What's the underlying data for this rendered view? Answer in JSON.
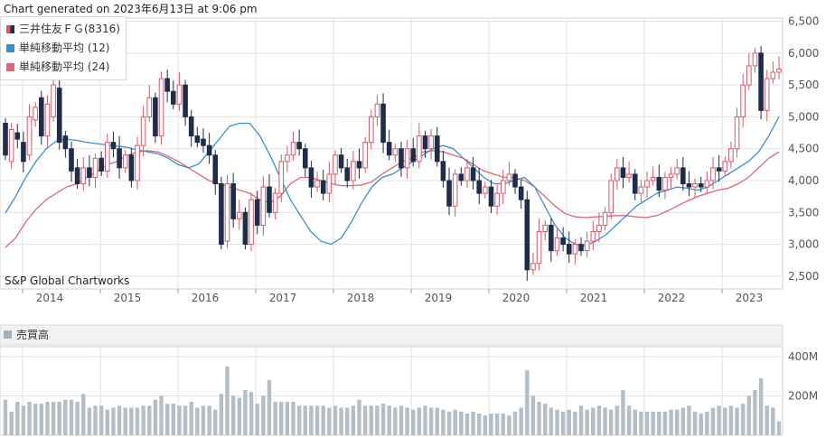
{
  "header": {
    "generated": "Chart generated on 2023年6月13日 at 9:06 pm",
    "source": "S&P Global Chartworks"
  },
  "legend": {
    "items": [
      {
        "label": "三井住友ＦＧ(8316)",
        "color": "#1f2d4a",
        "color2": "#d45a6a"
      },
      {
        "label": "単純移動平均 (12)",
        "color": "#3a8fd0"
      },
      {
        "label": "単純移動平均 (24)",
        "color": "#d9687a"
      }
    ]
  },
  "volume_panel": {
    "title": "売買高",
    "y_ticks": [
      "400M",
      "200M"
    ]
  },
  "chart_data": [
    {
      "type": "candlestick",
      "title": "三井住友ＦＧ(8316)",
      "x_labels": [
        "2014",
        "2015",
        "2016",
        "2017",
        "2018",
        "2019",
        "2020",
        "2021",
        "2022",
        "2023"
      ],
      "y_ticks": [
        "6,500",
        "6,000",
        "5,500",
        "5,000",
        "4,500",
        "4,000",
        "3,500",
        "3,000",
        "2,500"
      ],
      "ylim": [
        2300,
        6550
      ],
      "candles": [
        [
          4900,
          4400
        ],
        [
          4300,
          4800
        ],
        [
          4750,
          4650
        ],
        [
          4600,
          4300
        ],
        [
          4400,
          5000
        ],
        [
          4950,
          5150
        ],
        [
          5300,
          4700
        ],
        [
          4700,
          5200
        ],
        [
          5000,
          5500
        ],
        [
          5450,
          4600
        ],
        [
          4700,
          4500
        ],
        [
          4500,
          4150
        ],
        [
          4200,
          3950
        ],
        [
          3950,
          4200
        ],
        [
          4200,
          4050
        ],
        [
          4050,
          4350
        ],
        [
          4350,
          4150
        ],
        [
          4150,
          4600
        ],
        [
          4600,
          4500
        ],
        [
          4500,
          4200
        ],
        [
          4200,
          4400
        ],
        [
          4400,
          4000
        ],
        [
          4000,
          4550
        ],
        [
          4550,
          5000
        ],
        [
          5000,
          5300
        ],
        [
          5300,
          4700
        ],
        [
          4700,
          5600
        ],
        [
          5600,
          5400
        ],
        [
          5400,
          5200
        ],
        [
          5200,
          5500
        ],
        [
          5500,
          5000
        ],
        [
          5000,
          4700
        ],
        [
          4700,
          4600
        ],
        [
          4650,
          4550
        ],
        [
          4550,
          4400
        ],
        [
          4400,
          3950
        ],
        [
          3950,
          3000
        ],
        [
          3050,
          3950
        ],
        [
          3950,
          3400
        ],
        [
          3400,
          3500
        ],
        [
          3500,
          3000
        ],
        [
          3000,
          3700
        ],
        [
          3700,
          3300
        ],
        [
          3300,
          3900
        ],
        [
          3900,
          3500
        ],
        [
          3500,
          3800
        ],
        [
          3800,
          4300
        ],
        [
          4300,
          4400
        ],
        [
          4400,
          4600
        ],
        [
          4600,
          4500
        ],
        [
          4500,
          4200
        ],
        [
          4200,
          3900
        ],
        [
          3900,
          4000
        ],
        [
          4000,
          3800
        ],
        [
          3800,
          4100
        ],
        [
          4100,
          4400
        ],
        [
          4400,
          4200
        ],
        [
          4200,
          4000
        ],
        [
          4000,
          4300
        ],
        [
          4300,
          4200
        ],
        [
          4200,
          4600
        ],
        [
          4600,
          5000
        ],
        [
          5000,
          5200
        ],
        [
          5200,
          4600
        ],
        [
          4600,
          4400
        ],
        [
          4400,
          4500
        ],
        [
          4500,
          4200
        ],
        [
          4200,
          4500
        ],
        [
          4500,
          4300
        ],
        [
          4300,
          4700
        ],
        [
          4700,
          4500
        ],
        [
          4500,
          4700
        ],
        [
          4700,
          4300
        ],
        [
          4300,
          4000
        ],
        [
          4000,
          3600
        ],
        [
          3600,
          4100
        ],
        [
          4100,
          4000
        ],
        [
          4000,
          4200
        ],
        [
          4200,
          4000
        ],
        [
          4000,
          3800
        ],
        [
          3800,
          3900
        ],
        [
          3900,
          3600
        ],
        [
          3600,
          3800
        ],
        [
          3800,
          4000
        ],
        [
          4000,
          4100
        ],
        [
          4100,
          3900
        ],
        [
          3900,
          3700
        ],
        [
          3700,
          2600
        ],
        [
          2600,
          2700
        ],
        [
          2700,
          3200
        ],
        [
          3200,
          3300
        ],
        [
          3300,
          2900
        ],
        [
          2900,
          3100
        ],
        [
          3100,
          3000
        ],
        [
          3000,
          2850
        ],
        [
          2850,
          3000
        ],
        [
          3000,
          2900
        ],
        [
          2900,
          3050
        ],
        [
          3050,
          3200
        ],
        [
          3200,
          3300
        ],
        [
          3300,
          3500
        ],
        [
          3500,
          4000
        ],
        [
          4000,
          4200
        ],
        [
          4200,
          4050
        ],
        [
          4050,
          4100
        ],
        [
          4100,
          3800
        ],
        [
          3800,
          3900
        ],
        [
          3900,
          4000
        ],
        [
          4000,
          4050
        ],
        [
          4050,
          3850
        ],
        [
          3850,
          4050
        ],
        [
          4050,
          4100
        ],
        [
          4100,
          4200
        ],
        [
          4200,
          3950
        ],
        [
          3950,
          3900
        ],
        [
          3900,
          3950
        ],
        [
          3950,
          3900
        ],
        [
          3900,
          4000
        ],
        [
          4000,
          4200
        ],
        [
          4200,
          4150
        ],
        [
          4150,
          4300
        ],
        [
          4300,
          4500
        ],
        [
          4500,
          5000
        ],
        [
          5000,
          5500
        ],
        [
          5500,
          5800
        ],
        [
          5800,
          6000
        ],
        [
          6000,
          5100
        ],
        [
          5100,
          5600
        ],
        [
          5600,
          5700
        ],
        [
          5700,
          5750
        ]
      ],
      "sma12": [
        3490,
        3750,
        4050,
        4300,
        4500,
        4620,
        4650,
        4630,
        4600,
        4580,
        4560,
        4540,
        4520,
        4480,
        4450,
        4420,
        4350,
        4250,
        4200,
        4260,
        4450,
        4650,
        4850,
        4900,
        4900,
        4700,
        4400,
        4050,
        3700,
        3450,
        3200,
        3050,
        3000,
        3100,
        3350,
        3650,
        3900,
        4050,
        4100,
        4200,
        4300,
        4400,
        4500,
        4550,
        4500,
        4350,
        4200,
        4050,
        3950,
        3950,
        4000,
        4050,
        3900,
        3600,
        3300,
        3100,
        3000,
        2980,
        3050,
        3150,
        3300,
        3450,
        3600,
        3700,
        3800,
        3850,
        3900,
        3880,
        3850,
        3900,
        4000,
        4100,
        4200,
        4300,
        4450,
        4700,
        5000
      ],
      "sma24": [
        2950,
        3100,
        3350,
        3550,
        3700,
        3800,
        3900,
        3950,
        4050,
        4150,
        4250,
        4300,
        4400,
        4450,
        4470,
        4450,
        4380,
        4300,
        4200,
        4100,
        4000,
        3950,
        3900,
        3850,
        3800,
        3700,
        3650,
        3750,
        3950,
        4050,
        4050,
        4000,
        3950,
        3920,
        3920,
        3930,
        3980,
        4100,
        4200,
        4300,
        4350,
        4450,
        4470,
        4450,
        4400,
        4350,
        4250,
        4150,
        4100,
        4050,
        4050,
        4000,
        3900,
        3750,
        3600,
        3480,
        3430,
        3420,
        3430,
        3440,
        3450,
        3450,
        3430,
        3420,
        3450,
        3520,
        3600,
        3680,
        3750,
        3800,
        3850,
        3880,
        3950,
        4050,
        4200,
        4350,
        4450
      ]
    },
    {
      "type": "bar",
      "title": "売買高",
      "y_ticks": [
        "400M",
        "200M"
      ],
      "ylim": [
        0,
        450
      ],
      "values": [
        180,
        120,
        170,
        150,
        170,
        160,
        160,
        170,
        170,
        170,
        180,
        180,
        170,
        210,
        140,
        150,
        150,
        130,
        140,
        150,
        140,
        140,
        140,
        150,
        150,
        180,
        200,
        160,
        160,
        150,
        150,
        170,
        140,
        150,
        150,
        130,
        210,
        350,
        200,
        190,
        230,
        220,
        160,
        200,
        280,
        170,
        170,
        170,
        170,
        150,
        150,
        150,
        150,
        150,
        140,
        150,
        140,
        140,
        150,
        180,
        150,
        150,
        150,
        160,
        150,
        140,
        150,
        140,
        130,
        140,
        150,
        140,
        140,
        130,
        120,
        130,
        120,
        110,
        120,
        110,
        100,
        110,
        110,
        110,
        100,
        120,
        140,
        330,
        200,
        170,
        160,
        140,
        130,
        120,
        130,
        120,
        150,
        130,
        140,
        150,
        140,
        130,
        150,
        230,
        150,
        130,
        120,
        120,
        120,
        120,
        120,
        130,
        130,
        140,
        150,
        120,
        110,
        120,
        140,
        150,
        140,
        150,
        140,
        160,
        200,
        230,
        290,
        150,
        140,
        70
      ]
    }
  ]
}
